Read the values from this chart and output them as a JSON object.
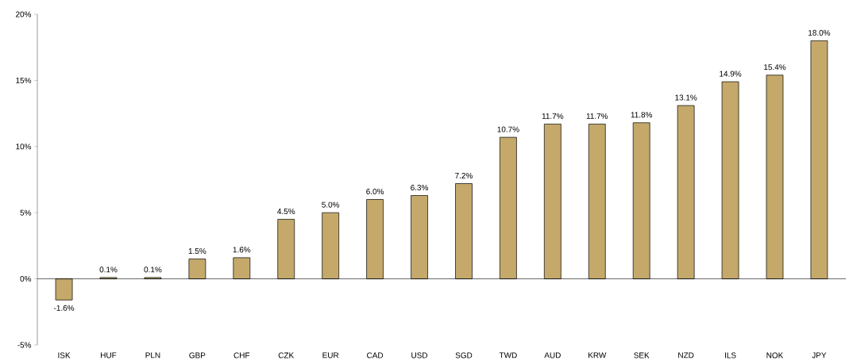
{
  "chart_data": {
    "type": "bar",
    "categories": [
      "ISK",
      "HUF",
      "PLN",
      "GBP",
      "CHF",
      "CZK",
      "EUR",
      "CAD",
      "USD",
      "SGD",
      "TWD",
      "AUD",
      "KRW",
      "SEK",
      "NZD",
      "ILS",
      "NOK",
      "JPY"
    ],
    "values": [
      -1.6,
      0.1,
      0.1,
      1.5,
      1.6,
      4.5,
      5.0,
      6.0,
      6.3,
      7.2,
      10.7,
      11.7,
      11.7,
      11.8,
      13.1,
      14.9,
      15.4,
      18.0
    ],
    "value_labels": [
      "-1.6%",
      "0.1%",
      "0.1%",
      "1.5%",
      "1.6%",
      "4.5%",
      "5.0%",
      "6.0%",
      "6.3%",
      "7.2%",
      "10.7%",
      "11.7%",
      "11.7%",
      "11.8%",
      "13.1%",
      "14.9%",
      "15.4%",
      "18.0%"
    ],
    "color": "#c4a96b",
    "ylim": [
      -5,
      20
    ],
    "yticks": [
      {
        "value": -5,
        "label": "-5%"
      },
      {
        "value": 0,
        "label": "0%"
      },
      {
        "value": 5,
        "label": "5%"
      },
      {
        "value": 10,
        "label": "10%"
      },
      {
        "value": 15,
        "label": "15%"
      },
      {
        "value": 20,
        "label": "20%"
      }
    ]
  }
}
